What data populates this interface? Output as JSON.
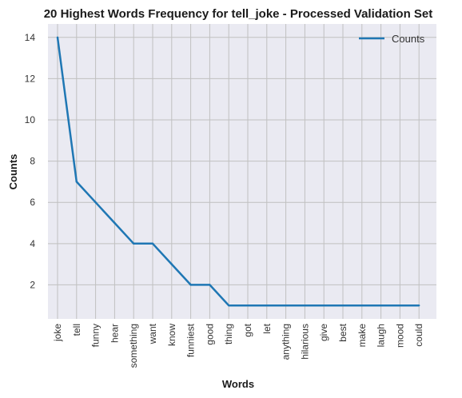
{
  "chart_data": {
    "type": "line",
    "title": "20 Highest Words Frequency for tell_joke - Processed Validation Set",
    "xlabel": "Words",
    "ylabel": "Counts",
    "categories": [
      "joke",
      "tell",
      "funny",
      "hear",
      "something",
      "want",
      "know",
      "funniest",
      "good",
      "thing",
      "got",
      "let",
      "anything",
      "hilarious",
      "give",
      "best",
      "make",
      "laugh",
      "mood",
      "could"
    ],
    "series": [
      {
        "name": "Counts",
        "values": [
          14,
          7,
          6,
          5,
          4,
          4,
          3,
          2,
          2,
          1,
          1,
          1,
          1,
          1,
          1,
          1,
          1,
          1,
          1,
          1
        ],
        "color": "#1f77b4"
      }
    ],
    "yticks": [
      2,
      4,
      6,
      8,
      10,
      12,
      14
    ],
    "ylim": [
      0.35,
      14.65
    ],
    "grid": true,
    "legend_position": "top-right",
    "plot_bg": "#eaeaf2",
    "grid_color": "#c0c0c0"
  }
}
